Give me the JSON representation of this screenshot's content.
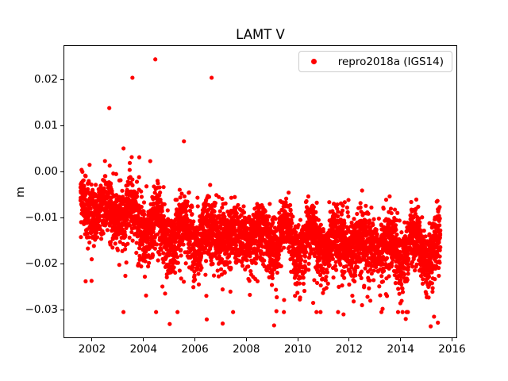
{
  "chart_data": {
    "type": "scatter",
    "title": "LAMT V",
    "xlabel": "",
    "ylabel": "m",
    "legend": {
      "position": "upper right",
      "entries": [
        {
          "label": "repro2018a (IGS14)",
          "color": "#ff0000",
          "marker": "dot"
        }
      ]
    },
    "axes": {
      "xlim": [
        2000.92,
        2016.17
      ],
      "ylim": [
        -0.036,
        0.0274
      ],
      "xticks": [
        2002,
        2004,
        2006,
        2008,
        2010,
        2012,
        2014,
        2016
      ],
      "xtick_labels": [
        "2002",
        "2004",
        "2006",
        "2008",
        "2010",
        "2012",
        "2014",
        "2016"
      ],
      "yticks": [
        0.02,
        0.01,
        0.0,
        -0.01,
        -0.02,
        -0.03
      ],
      "ytick_labels": [
        "0.02",
        "0.01",
        "0.00",
        "−0.01",
        "−0.02",
        "−0.03"
      ],
      "grid": false
    },
    "colors": {
      "points": "#ff0000",
      "spines": "#000000",
      "text": "#000000",
      "legend_edge": "#cccccc"
    },
    "series": [
      {
        "name": "repro2018a (IGS14)",
        "color": "#ff0000",
        "marker_radius_px": 2.6,
        "t_start": 2001.55,
        "t_end": 2015.55,
        "n_points": 4600,
        "seed": 42,
        "trend": [
          [
            2001.6,
            -0.007
          ],
          [
            2002.5,
            -0.0085
          ],
          [
            2003.5,
            -0.009
          ],
          [
            2004.5,
            -0.0125
          ],
          [
            2005.5,
            -0.0135
          ],
          [
            2006.5,
            -0.013
          ],
          [
            2008.0,
            -0.014
          ],
          [
            2010.0,
            -0.0145
          ],
          [
            2012.0,
            -0.015
          ],
          [
            2014.0,
            -0.016
          ],
          [
            2015.5,
            -0.0165
          ]
        ],
        "sigma": 0.0035,
        "upper_scale": 0.85,
        "seasonal": {
          "period": 1.0,
          "phase": 0.3,
          "amp_base": 0.0022,
          "amp_mod": 0.0012,
          "amp_mod_period": 5.1,
          "amp_mod_phase": 1.0
        },
        "pos_tail": [
          {
            "until": 2004.5,
            "p": 0.03,
            "mag": 0.006
          },
          {
            "until": 2007.2,
            "p": 0.018,
            "mag": 0.0048
          },
          {
            "until": 2016.0,
            "p": 0.005,
            "mag": 0.0022
          }
        ],
        "neg_tail": {
          "p": 0.05,
          "mag": 0.0045
        },
        "clip": [
          -0.0305,
          0.0115
        ],
        "outliers": [
          [
            2002.67,
            0.0139
          ],
          [
            2003.57,
            0.0205
          ],
          [
            2004.46,
            0.0245
          ],
          [
            2006.65,
            0.0205
          ],
          [
            2001.75,
            -0.0238
          ],
          [
            2004.1,
            -0.0269
          ],
          [
            2005.02,
            -0.0331
          ],
          [
            2006.46,
            -0.0321
          ],
          [
            2007.08,
            -0.033
          ],
          [
            2009.08,
            -0.0334
          ],
          [
            2009.17,
            -0.0303
          ],
          [
            2010.6,
            -0.0285
          ],
          [
            2011.78,
            -0.031
          ],
          [
            2012.5,
            -0.029
          ],
          [
            2013.3,
            -0.0298
          ],
          [
            2013.9,
            -0.0305
          ],
          [
            2014.2,
            -0.032
          ],
          [
            2015.17,
            -0.0336
          ],
          [
            2015.3,
            -0.0315
          ],
          [
            2015.45,
            -0.0328
          ]
        ]
      }
    ]
  }
}
